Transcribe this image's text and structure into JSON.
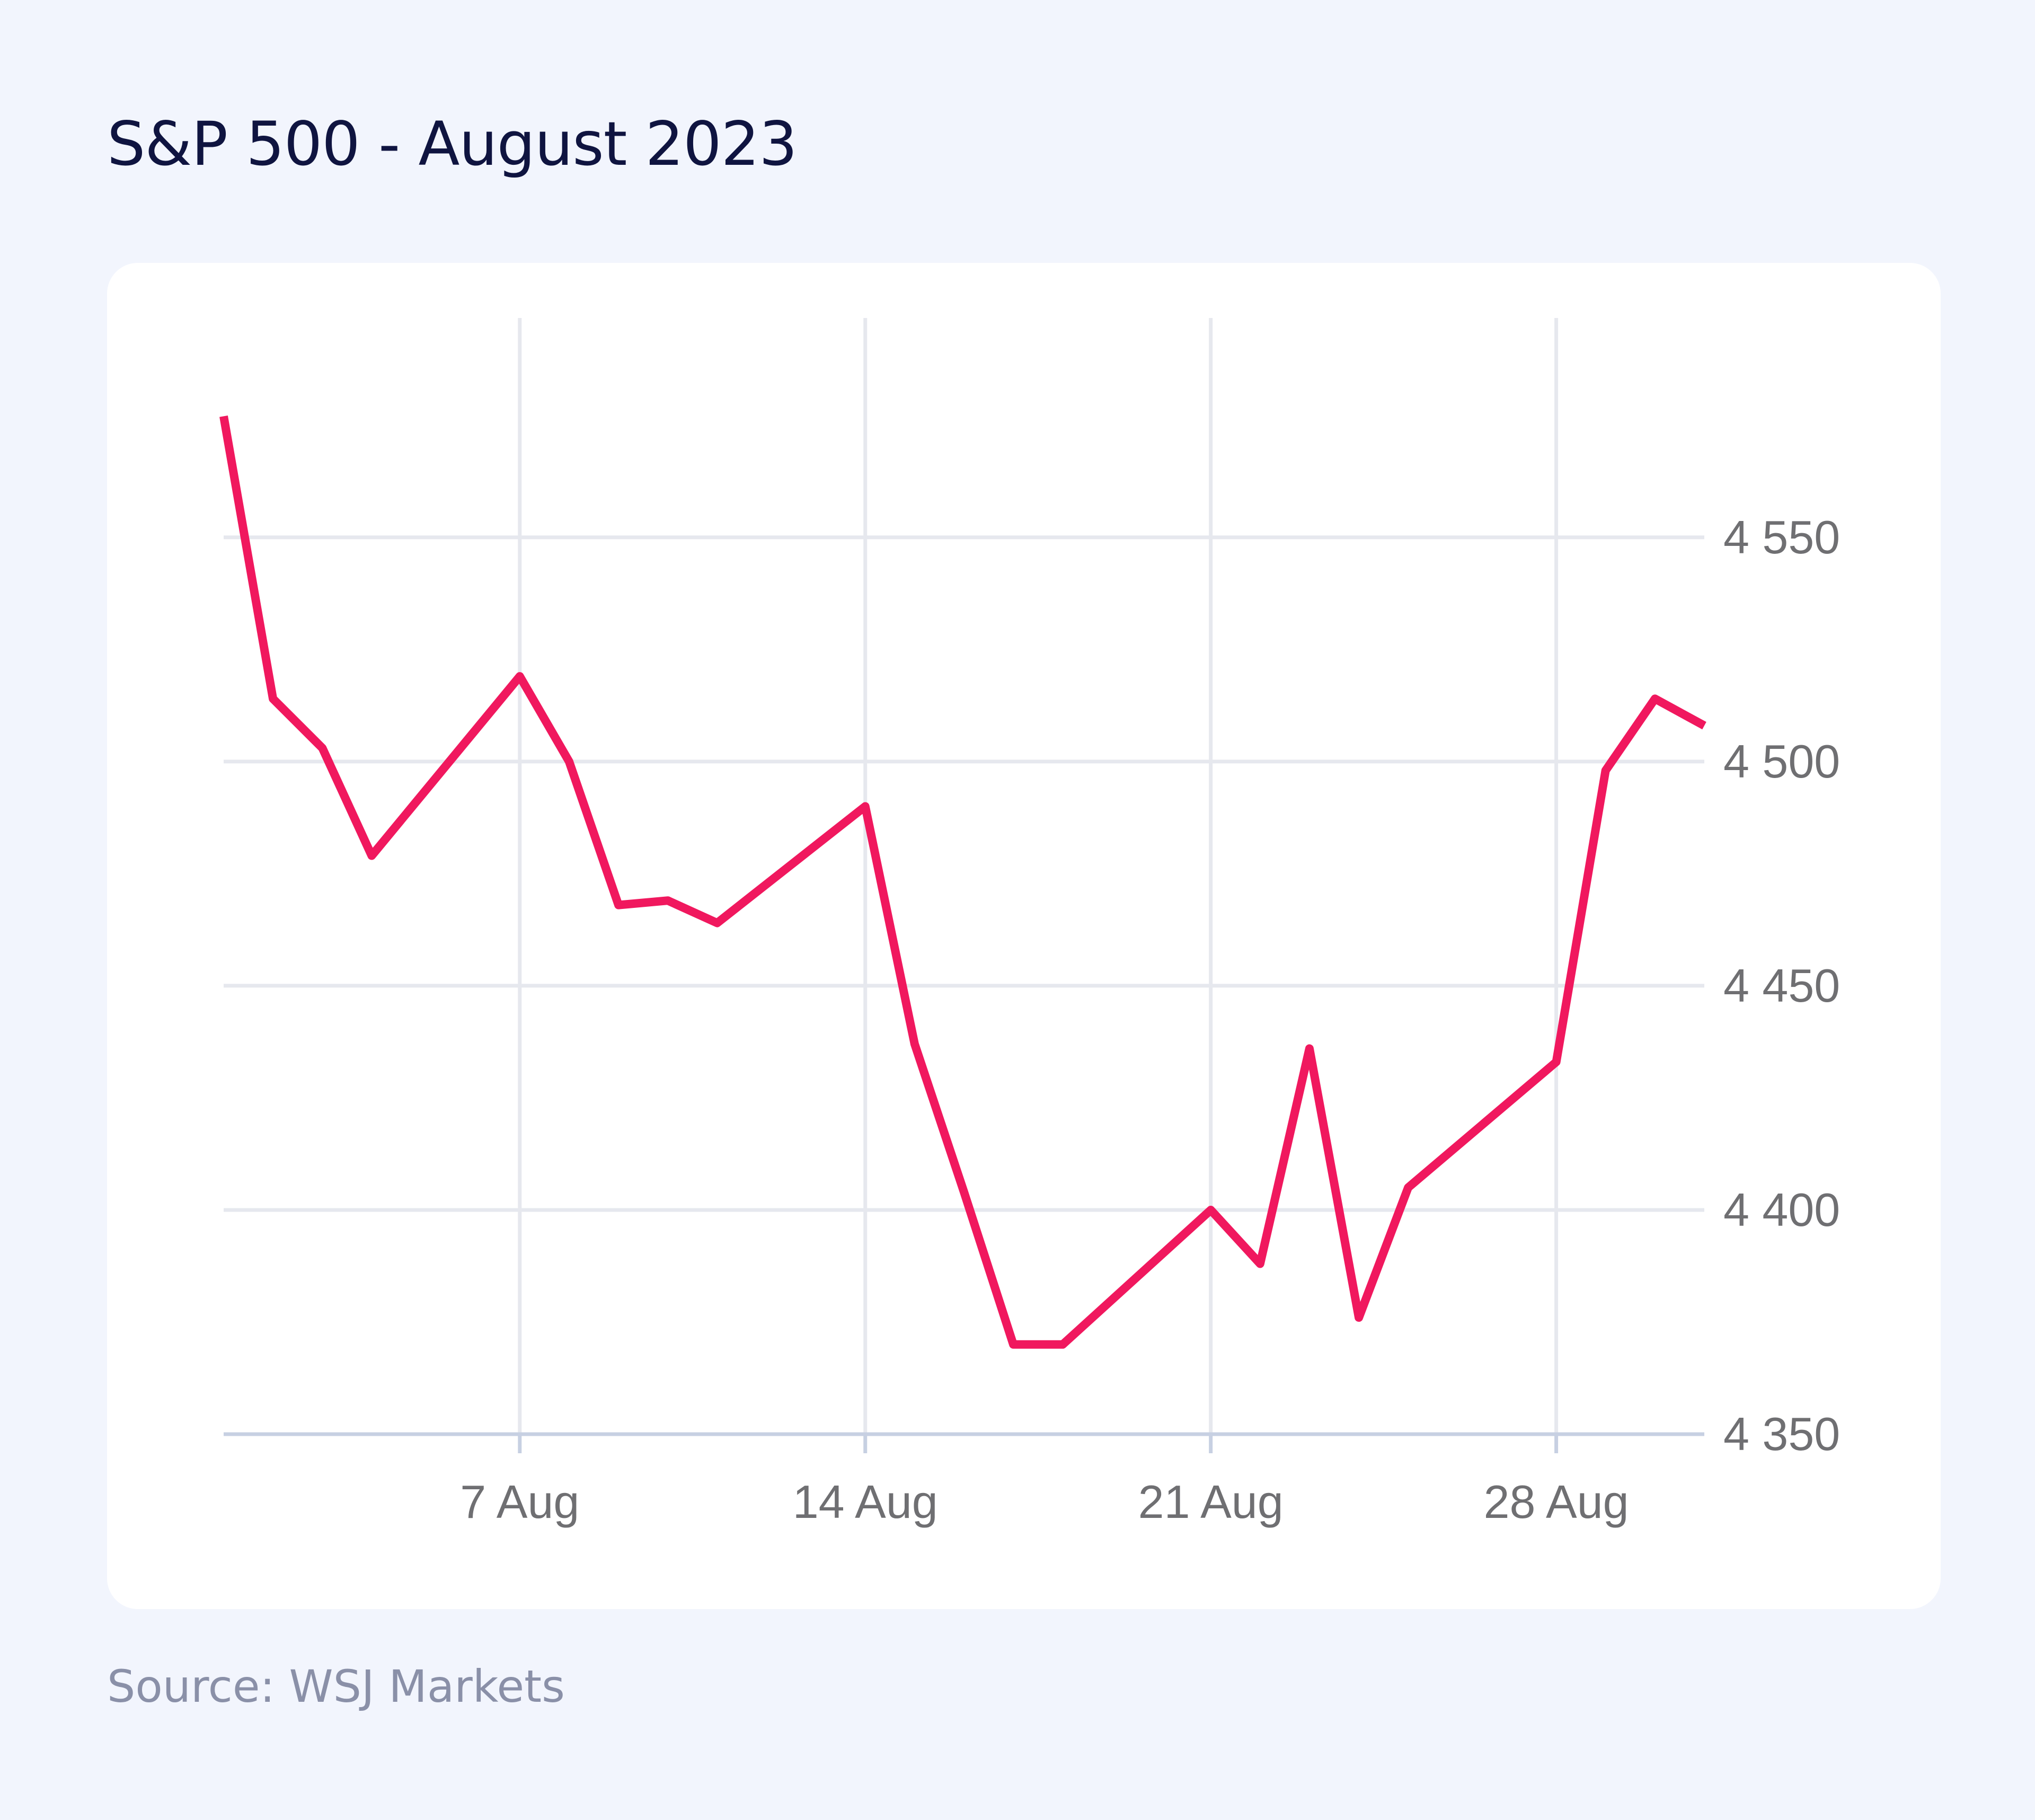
{
  "title": "S&P 500 - August 2023",
  "source": "Source: WSJ Markets",
  "colors": {
    "background": "#f2f5fd",
    "card": "#ffffff",
    "line": "#f0185e",
    "title": "#0f1440",
    "grid": "#e6e8ee",
    "axis": "#c7d0e2"
  },
  "chart_data": {
    "type": "line",
    "title": "S&P 500 - August 2023",
    "xlabel": "",
    "ylabel": "",
    "grid": true,
    "y_axis_position": "right",
    "x": [
      "2023-08-01",
      "2023-08-02",
      "2023-08-03",
      "2023-08-04",
      "2023-08-07",
      "2023-08-08",
      "2023-08-09",
      "2023-08-10",
      "2023-08-11",
      "2023-08-14",
      "2023-08-15",
      "2023-08-16",
      "2023-08-17",
      "2023-08-18",
      "2023-08-21",
      "2023-08-22",
      "2023-08-23",
      "2023-08-24",
      "2023-08-25",
      "2023-08-28",
      "2023-08-29",
      "2023-08-30",
      "2023-08-31"
    ],
    "series": [
      {
        "values": [
          4577,
          4514,
          4503,
          4479,
          4519,
          4500,
          4468,
          4469,
          4464,
          4490,
          4437,
          4404,
          4370,
          4370,
          4400,
          4388,
          4436,
          4376,
          4405,
          4433,
          4498,
          4514,
          4508
        ]
      }
    ],
    "x_ticks": [
      {
        "date": "2023-08-07",
        "label": "7 Aug"
      },
      {
        "date": "2023-08-14",
        "label": "14 Aug"
      },
      {
        "date": "2023-08-21",
        "label": "21 Aug"
      },
      {
        "date": "2023-08-28",
        "label": "28 Aug"
      }
    ],
    "y_ticks": [
      {
        "value": 4350,
        "label": "4 350"
      },
      {
        "value": 4400,
        "label": "4 400"
      },
      {
        "value": 4450,
        "label": "4 450"
      },
      {
        "value": 4500,
        "label": "4 500"
      },
      {
        "value": 4550,
        "label": "4 550"
      }
    ],
    "xlim": [
      "2023-08-01",
      "2023-08-31"
    ],
    "ylim": [
      4350,
      4580
    ]
  }
}
